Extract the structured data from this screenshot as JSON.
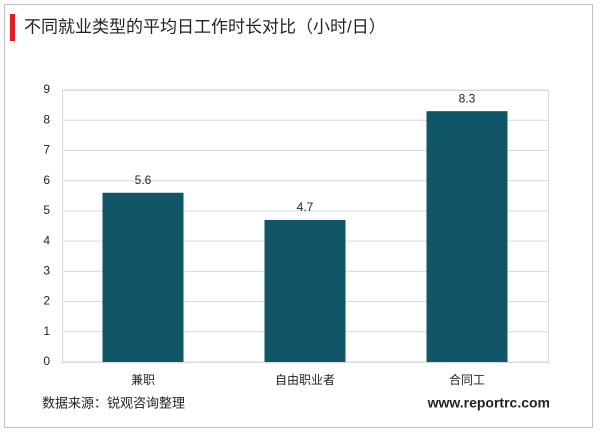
{
  "chart_data": {
    "type": "bar",
    "title": "不同就业类型的平均日工作时长对比（小时/日）",
    "categories": [
      "兼职",
      "自由职业者",
      "合同工"
    ],
    "values": [
      5.6,
      4.7,
      8.3
    ],
    "color": "#115569",
    "ylim": [
      0,
      9
    ],
    "yticks": [
      0,
      1,
      2,
      3,
      4,
      5,
      6,
      7,
      8,
      9
    ],
    "grid": true,
    "source": "数据来源：锐观咨询整理",
    "website": "www.reportrc.com"
  }
}
